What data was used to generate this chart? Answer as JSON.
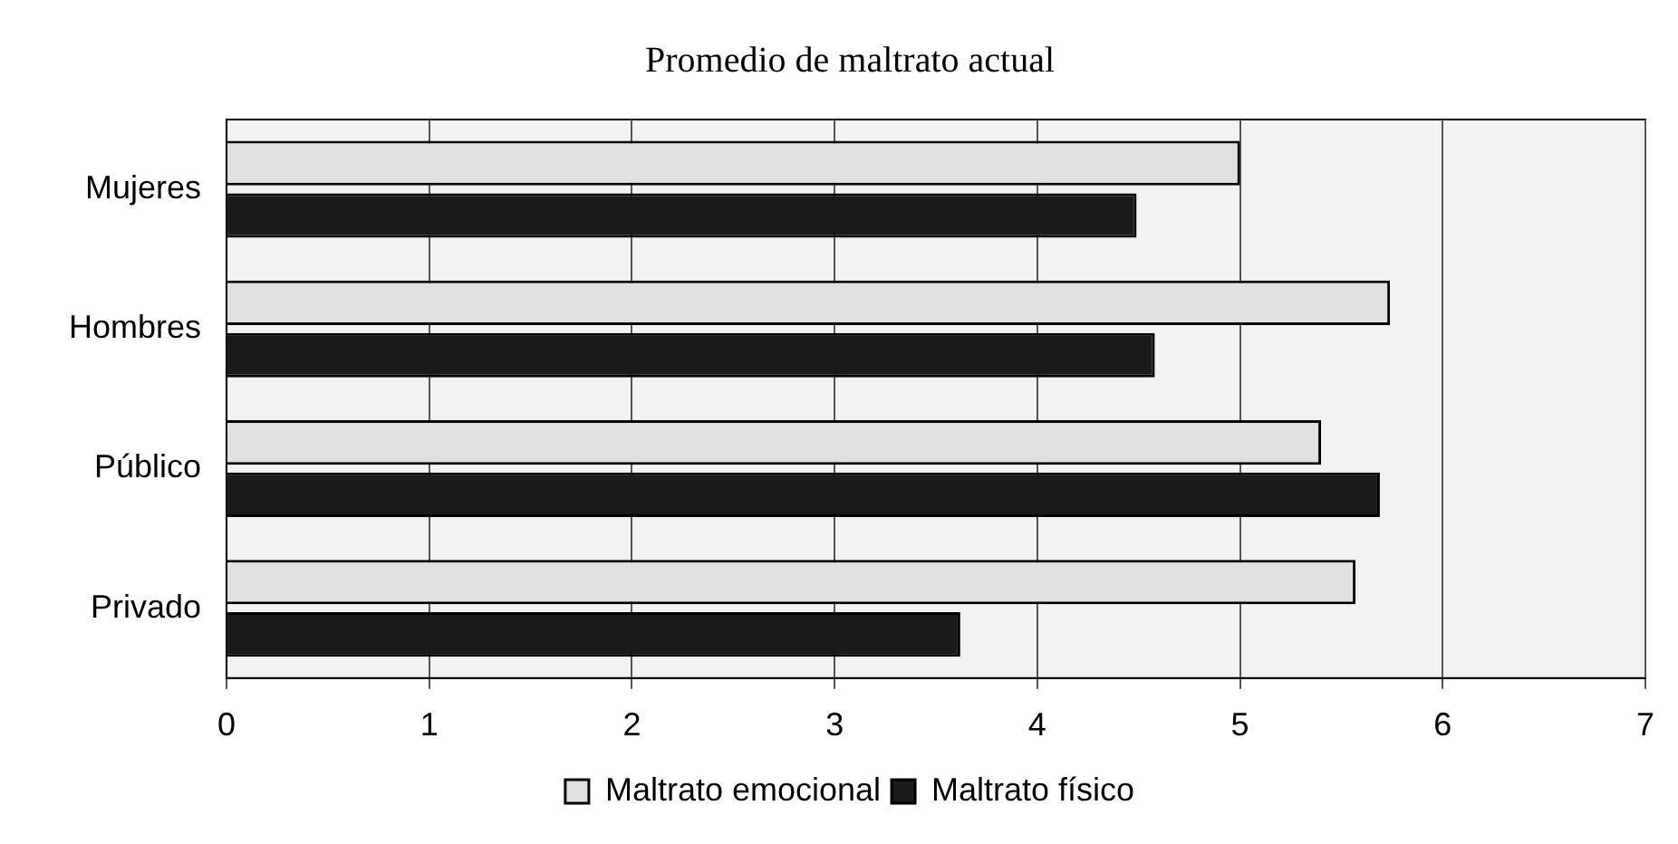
{
  "chart_data": {
    "type": "bar",
    "orientation": "horizontal",
    "title": "Promedio de maltrato actual",
    "categories": [
      "Mujeres",
      "Hombres",
      "Público",
      "Privado"
    ],
    "series": [
      {
        "name": "Maltrato emocional",
        "color": "#e0e0e0",
        "values": [
          5.0,
          5.74,
          5.4,
          5.57
        ]
      },
      {
        "name": "Maltrato físico",
        "color": "#1a1a1a",
        "values": [
          4.49,
          4.58,
          5.69,
          3.62
        ]
      }
    ],
    "xlim": [
      0,
      7
    ],
    "xticks": [
      0,
      1,
      2,
      3,
      4,
      5,
      6,
      7
    ],
    "grid": "x",
    "legend": "bottom"
  }
}
